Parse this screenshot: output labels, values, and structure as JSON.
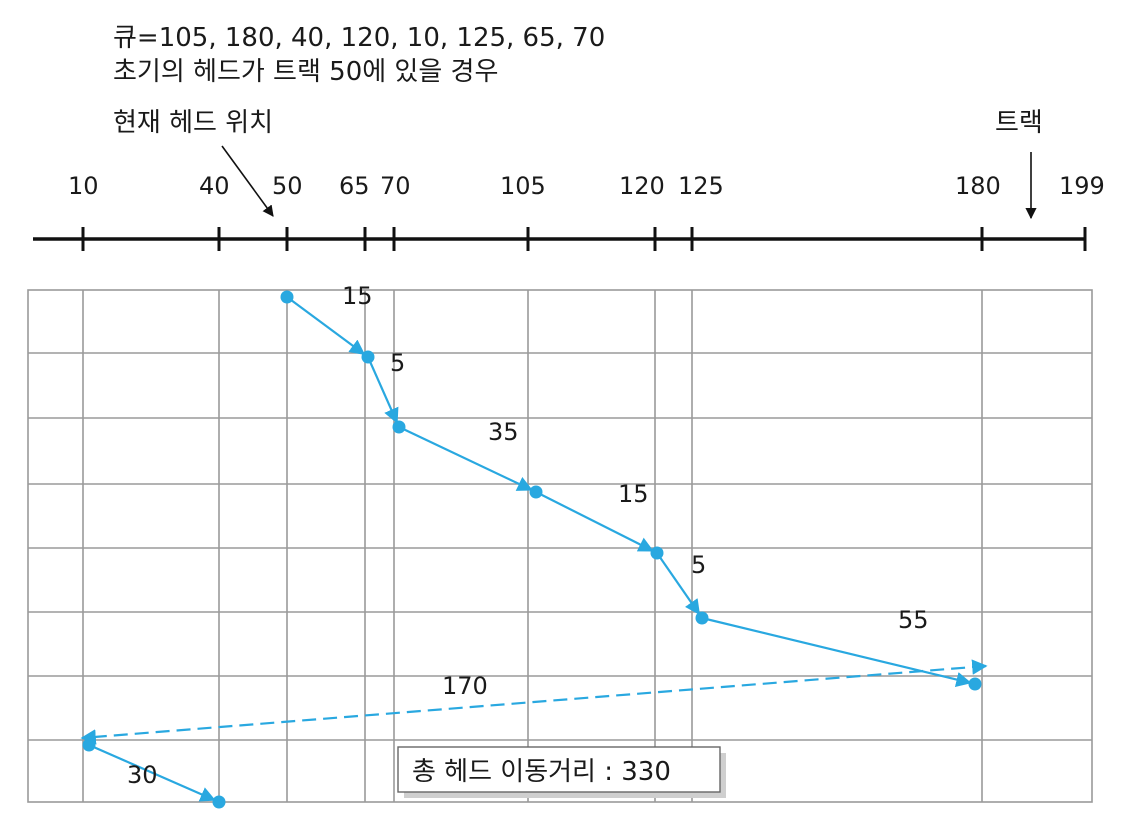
{
  "header": {
    "queue_line": "큐=105, 180, 40, 120, 10, 125, 65, 70",
    "initial_line": "초기의 헤드가 트랙 50에 있을 경우",
    "current_head_label": "현재 헤드 위치",
    "track_label": "트랙"
  },
  "chart_data": {
    "type": "line",
    "track_ticks": [
      10,
      40,
      50,
      65,
      70,
      105,
      120,
      125,
      180,
      199
    ],
    "tick_labels": [
      "10",
      "40",
      "50",
      "65",
      "70",
      "105",
      "120",
      "125",
      "180",
      "199"
    ],
    "axis_range": [
      0,
      199
    ],
    "grid": true,
    "path": [
      {
        "track": 50,
        "step": 0
      },
      {
        "track": 65,
        "step": 1
      },
      {
        "track": 70,
        "step": 2
      },
      {
        "track": 105,
        "step": 3
      },
      {
        "track": 120,
        "step": 4
      },
      {
        "track": 125,
        "step": 5
      },
      {
        "track": 180,
        "step": 6
      },
      {
        "track": 10,
        "step": 7
      },
      {
        "track": 40,
        "step": 8
      }
    ],
    "movement_labels": [
      "15",
      "5",
      "35",
      "15",
      "5",
      "55",
      "170",
      "30"
    ],
    "jump_segment_index": 6
  },
  "footer": {
    "total_label": "총 헤드 이동거리 : 330"
  },
  "colors": {
    "path": "#29a8e0",
    "axis": "#111111",
    "grid": "#9a9a9a"
  }
}
